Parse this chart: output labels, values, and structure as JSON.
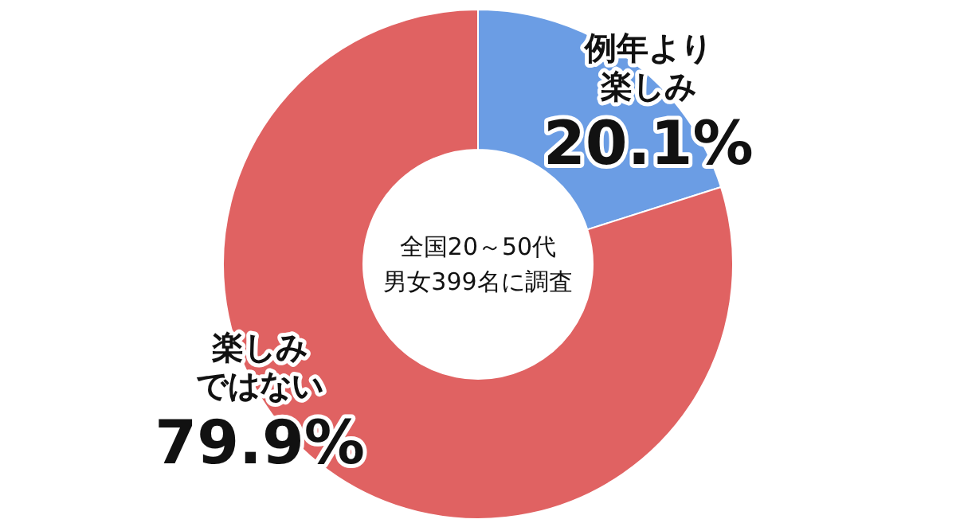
{
  "chart_data": {
    "type": "donut",
    "categories": [
      "例年より楽しみ",
      "楽しみではない"
    ],
    "values": [
      20.1,
      79.9
    ],
    "colors": [
      "#6b9de4",
      "#e06262"
    ],
    "value_labels": [
      "20.1%",
      "79.9%"
    ],
    "annotations": [
      "全国20～50代男女399名に調査"
    ],
    "legend": false
  }
}
